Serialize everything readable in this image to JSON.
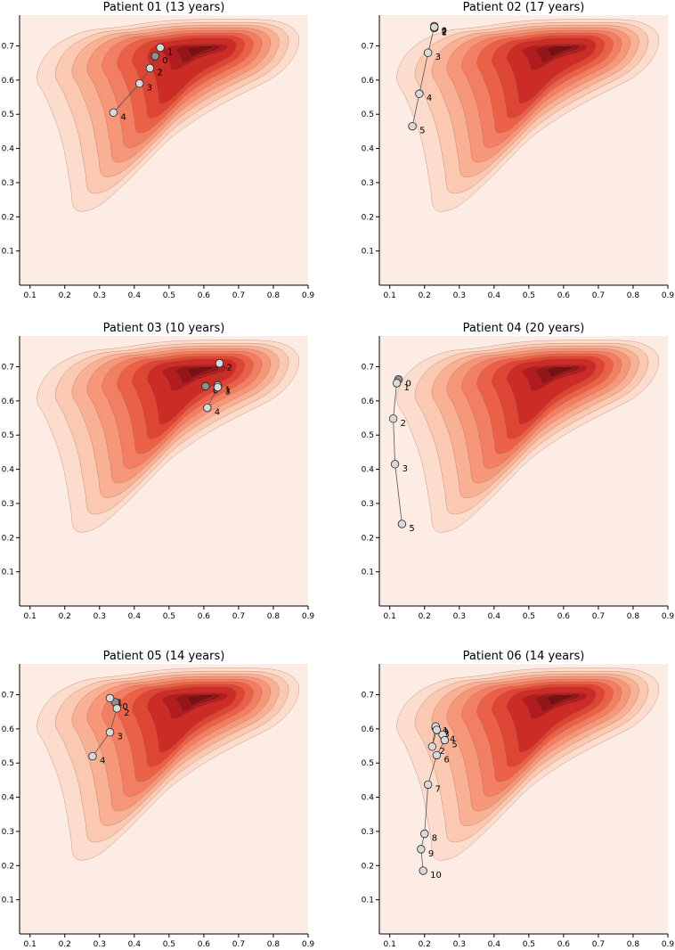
{
  "figure": {
    "colors": {
      "background": "#fdece4",
      "levels": [
        "#fcdccd",
        "#fbc8b2",
        "#f9b195",
        "#f6977a",
        "#f27e63",
        "#ea6148",
        "#dd4535",
        "#cb2c26",
        "#b31c1f",
        "#961518",
        "#7b1013"
      ],
      "contour_line": "#9e5a48",
      "marker_fill": "#d9d9d9",
      "marker_first_fill": "#8f8f8f",
      "marker_edge": "#222222",
      "trajectory": "#555555"
    }
  },
  "chart_data": [
    {
      "type": "scatter",
      "subtype": "trajectory over density contour",
      "title": "Patient 01 (13 years)",
      "xlim": [
        0.07,
        0.9
      ],
      "ylim": [
        0.0,
        0.79
      ],
      "xticks": [
        "0.1",
        "0.2",
        "0.3",
        "0.4",
        "0.5",
        "0.6",
        "0.7",
        "0.8",
        "0.9"
      ],
      "yticks": [
        "0.1",
        "0.2",
        "0.3",
        "0.4",
        "0.5",
        "0.6",
        "0.7"
      ],
      "points": [
        {
          "label": "0",
          "x": 0.46,
          "y": 0.67
        },
        {
          "label": "1",
          "x": 0.475,
          "y": 0.695
        },
        {
          "label": "2",
          "x": 0.445,
          "y": 0.635
        },
        {
          "label": "3",
          "x": 0.415,
          "y": 0.59
        },
        {
          "label": "4",
          "x": 0.34,
          "y": 0.505
        }
      ]
    },
    {
      "type": "scatter",
      "subtype": "trajectory over density contour",
      "title": "Patient 02  (17 years)",
      "xlim": [
        0.07,
        0.9
      ],
      "ylim": [
        0.0,
        0.79
      ],
      "xticks": [
        "0.1",
        "0.2",
        "0.3",
        "0.4",
        "0.5",
        "0.6",
        "0.7",
        "0.8",
        "0.9"
      ],
      "yticks": [
        "0.1",
        "0.2",
        "0.3",
        "0.4",
        "0.5",
        "0.6",
        "0.7"
      ],
      "points": [
        {
          "label": "0",
          "x": 0.228,
          "y": 0.758
        },
        {
          "label": "1",
          "x": 0.228,
          "y": 0.752
        },
        {
          "label": "2",
          "x": 0.228,
          "y": 0.755
        },
        {
          "label": "3",
          "x": 0.21,
          "y": 0.68
        },
        {
          "label": "4",
          "x": 0.185,
          "y": 0.56
        },
        {
          "label": "5",
          "x": 0.165,
          "y": 0.465
        }
      ]
    },
    {
      "type": "scatter",
      "subtype": "trajectory over density contour",
      "title": "Patient 03  (10 years)",
      "xlim": [
        0.07,
        0.9
      ],
      "ylim": [
        0.0,
        0.79
      ],
      "xticks": [
        "0.1",
        "0.2",
        "0.3",
        "0.4",
        "0.5",
        "0.6",
        "0.7",
        "0.8",
        "0.9"
      ],
      "yticks": [
        "0.1",
        "0.2",
        "0.3",
        "0.4",
        "0.5",
        "0.6",
        "0.7"
      ],
      "points": [
        {
          "label": "0",
          "x": 0.605,
          "y": 0.643
        },
        {
          "label": "1",
          "x": 0.64,
          "y": 0.645
        },
        {
          "label": "2",
          "x": 0.645,
          "y": 0.71
        },
        {
          "label": "3",
          "x": 0.64,
          "y": 0.64
        },
        {
          "label": "4",
          "x": 0.61,
          "y": 0.58
        }
      ]
    },
    {
      "type": "scatter",
      "subtype": "trajectory over density contour",
      "title": "Patient 04  (20 years)",
      "xlim": [
        0.07,
        0.9
      ],
      "ylim": [
        0.0,
        0.79
      ],
      "xticks": [
        "0.1",
        "0.2",
        "0.3",
        "0.4",
        "0.5",
        "0.6",
        "0.7",
        "0.8",
        "0.9"
      ],
      "yticks": [
        "0.1",
        "0.2",
        "0.3",
        "0.4",
        "0.5",
        "0.6",
        "0.7"
      ],
      "points": [
        {
          "label": "0",
          "x": 0.125,
          "y": 0.663
        },
        {
          "label": "1",
          "x": 0.12,
          "y": 0.652
        },
        {
          "label": "2",
          "x": 0.11,
          "y": 0.548
        },
        {
          "label": "3",
          "x": 0.115,
          "y": 0.415
        },
        {
          "label": "5",
          "x": 0.135,
          "y": 0.24
        }
      ]
    },
    {
      "type": "scatter",
      "subtype": "trajectory over density contour",
      "title": "Patient 05 (14 years)",
      "xlim": [
        0.07,
        0.9
      ],
      "ylim": [
        0.0,
        0.79
      ],
      "xticks": [
        "0.1",
        "0.2",
        "0.3",
        "0.4",
        "0.5",
        "0.6",
        "0.7",
        "0.8",
        "0.9"
      ],
      "yticks": [
        "0.1",
        "0.2",
        "0.3",
        "0.4",
        "0.5",
        "0.6",
        "0.7"
      ],
      "points": [
        {
          "label": "0",
          "x": 0.345,
          "y": 0.678
        },
        {
          "label": "1",
          "x": 0.33,
          "y": 0.69
        },
        {
          "label": "2",
          "x": 0.35,
          "y": 0.66
        },
        {
          "label": "3",
          "x": 0.33,
          "y": 0.59
        },
        {
          "label": "4",
          "x": 0.28,
          "y": 0.52
        }
      ]
    },
    {
      "type": "scatter",
      "subtype": "trajectory over density contour",
      "title": "Patient 06 (14 years)",
      "xlim": [
        0.07,
        0.9
      ],
      "ylim": [
        0.0,
        0.79
      ],
      "xticks": [
        "0.1",
        "0.2",
        "0.3",
        "0.4",
        "0.5",
        "0.6",
        "0.7",
        "0.8",
        "0.9"
      ],
      "yticks": [
        "0.1",
        "0.2",
        "0.3",
        "0.4",
        "0.5",
        "0.6",
        "0.7"
      ],
      "points": [
        {
          "label": "0",
          "x": 0.232,
          "y": 0.603
        },
        {
          "label": "1",
          "x": 0.232,
          "y": 0.607
        },
        {
          "label": "2",
          "x": 0.222,
          "y": 0.548
        },
        {
          "label": "3",
          "x": 0.235,
          "y": 0.597
        },
        {
          "label": "4",
          "x": 0.252,
          "y": 0.583
        },
        {
          "label": "5",
          "x": 0.258,
          "y": 0.567
        },
        {
          "label": "6",
          "x": 0.235,
          "y": 0.523
        },
        {
          "label": "7",
          "x": 0.21,
          "y": 0.437
        },
        {
          "label": "8",
          "x": 0.2,
          "y": 0.293
        },
        {
          "label": "9",
          "x": 0.19,
          "y": 0.248
        },
        {
          "label": "10",
          "x": 0.196,
          "y": 0.185
        }
      ]
    }
  ]
}
